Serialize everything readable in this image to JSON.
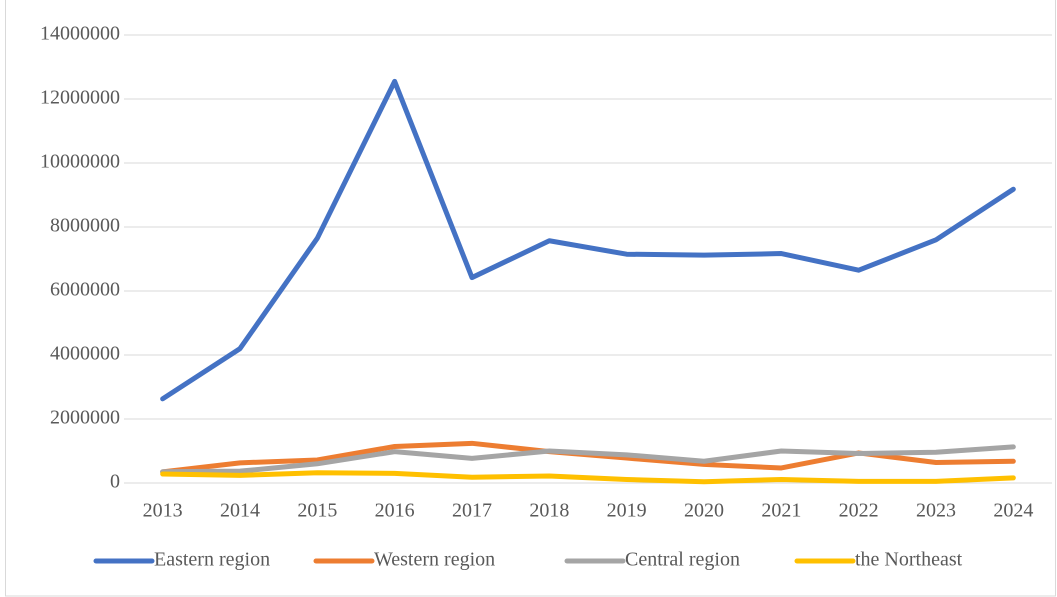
{
  "chart_data": {
    "type": "line",
    "categories": [
      "2013",
      "2014",
      "2015",
      "2016",
      "2017",
      "2018",
      "2019",
      "2020",
      "2021",
      "2022",
      "2023",
      "2024"
    ],
    "series": [
      {
        "name": "Eastern region",
        "color": "#4472c4",
        "values": [
          2630000,
          4200000,
          7650000,
          12550000,
          6420000,
          7570000,
          7150000,
          7120000,
          7170000,
          6650000,
          7600000,
          9180000
        ]
      },
      {
        "name": "Western region",
        "color": "#ed7d31",
        "values": [
          350000,
          630000,
          720000,
          1140000,
          1240000,
          980000,
          780000,
          580000,
          470000,
          940000,
          640000,
          680000
        ]
      },
      {
        "name": "Central region",
        "color": "#a5a5a5",
        "values": [
          350000,
          370000,
          600000,
          980000,
          770000,
          1000000,
          880000,
          680000,
          1000000,
          920000,
          960000,
          1130000
        ]
      },
      {
        "name": "the Northeast",
        "color": "#ffc000",
        "values": [
          280000,
          240000,
          320000,
          300000,
          180000,
          220000,
          110000,
          40000,
          110000,
          50000,
          50000,
          160000
        ]
      }
    ],
    "ylim": [
      0,
      14000000
    ],
    "yticks": [
      0,
      2000000,
      4000000,
      6000000,
      8000000,
      10000000,
      12000000,
      14000000
    ],
    "grid": true,
    "legend": "bottom"
  }
}
